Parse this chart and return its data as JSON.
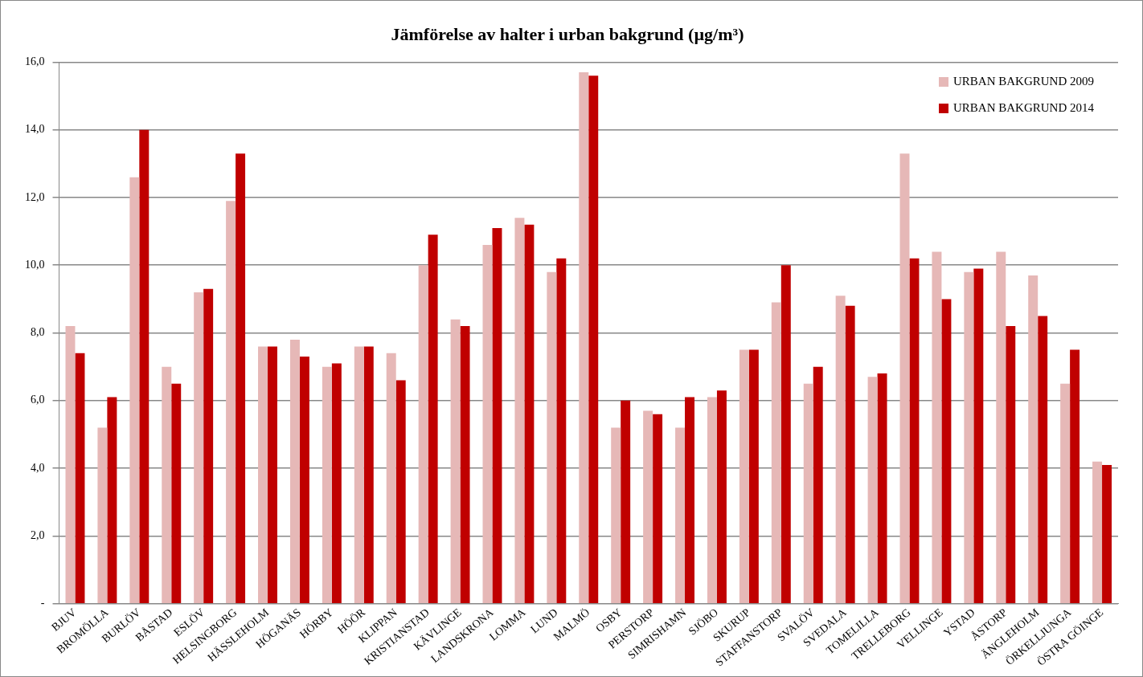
{
  "chart_data": {
    "type": "bar",
    "title": "Jämförelse av halter i urban bakgrund (µg/m³)",
    "categories": [
      "BJUV",
      "BROMÖLLA",
      "BURLÖV",
      "BÅSTAD",
      "ESLÖV",
      "HELSINGBORG",
      "HÄSSLEHOLM",
      "HÖGANÄS",
      "HÖRBY",
      "HÖÖR",
      "KLIPPAN",
      "KRISTIANSTAD",
      "KÄVLINGE",
      "LANDSKRONA",
      "LOMMA",
      "LUND",
      "MALMÖ",
      "OSBY",
      "PERSTORP",
      "SIMRISHAMN",
      "SJÖBO",
      "SKURUP",
      "STAFFANSTORP",
      "SVALÖV",
      "SVEDALA",
      "TOMELILLA",
      "TRELLEBORG",
      "VELLINGE",
      "YSTAD",
      "ÅSTORP",
      "ÄNGLEHOLM",
      "ÖRKELLJUNGA",
      "ÖSTRA GÖINGE"
    ],
    "series": [
      {
        "name": "URBAN BAKGRUND 2009",
        "color": "#e6b8b7",
        "values": [
          8.2,
          5.2,
          12.6,
          7.0,
          9.2,
          11.9,
          7.6,
          7.8,
          7.0,
          7.6,
          7.4,
          10.0,
          8.4,
          10.6,
          11.4,
          9.8,
          15.7,
          5.2,
          5.7,
          5.2,
          6.1,
          7.5,
          8.9,
          6.5,
          9.1,
          6.7,
          13.3,
          10.4,
          9.8,
          10.4,
          9.7,
          6.5,
          4.2
        ]
      },
      {
        "name": "URBAN BAKGRUND 2014",
        "color": "#c00000",
        "values": [
          7.4,
          6.1,
          14.0,
          6.5,
          9.3,
          13.3,
          7.6,
          7.3,
          7.1,
          7.6,
          6.6,
          10.9,
          8.2,
          11.1,
          11.2,
          10.2,
          15.6,
          6.0,
          5.6,
          6.1,
          6.3,
          7.5,
          10.0,
          7.0,
          8.8,
          6.8,
          10.2,
          9.0,
          9.9,
          8.2,
          8.5,
          7.5,
          4.1
        ]
      }
    ],
    "ylim": [
      0,
      16
    ],
    "yticks": [
      {
        "value": 0,
        "label": "-"
      },
      {
        "value": 2,
        "label": "2,0"
      },
      {
        "value": 4,
        "label": "4,0"
      },
      {
        "value": 6,
        "label": "6,0"
      },
      {
        "value": 8,
        "label": "8,0"
      },
      {
        "value": 10,
        "label": "10,0"
      },
      {
        "value": 12,
        "label": "12,0"
      },
      {
        "value": 14,
        "label": "14,0"
      },
      {
        "value": 16,
        "label": "16,0"
      }
    ],
    "grid": "y",
    "legend": "top right"
  }
}
